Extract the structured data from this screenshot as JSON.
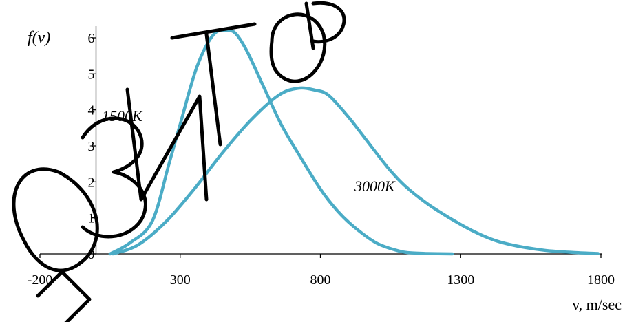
{
  "chart_data": {
    "type": "line",
    "ylabel": "f(v)",
    "xlabel": "v, m/sec",
    "xlim": [
      -200,
      1800
    ],
    "ylim": [
      0,
      6.5
    ],
    "x_ticks": [
      "-200",
      "300",
      "800",
      "1300",
      "1800"
    ],
    "y_ticks": [
      "0",
      "1",
      "2",
      "3",
      "4",
      "5",
      "6"
    ],
    "grid": false,
    "legend": "none",
    "line_color": "#4BACC6",
    "series": [
      {
        "name": "1500K",
        "x": [
          50,
          120,
          200,
          260,
          300,
          360,
          420,
          470,
          500,
          540,
          600,
          660,
          720,
          800,
          860,
          920,
          1000,
          1080,
          1120,
          1180,
          1270
        ],
        "y": [
          0,
          0.3,
          0.9,
          2.5,
          3.6,
          5.2,
          6.1,
          6.2,
          6.1,
          5.6,
          4.6,
          3.6,
          2.8,
          1.8,
          1.2,
          0.75,
          0.3,
          0.08,
          0.03,
          0.01,
          0
        ]
      },
      {
        "name": "3000K",
        "x": [
          60,
          150,
          250,
          350,
          450,
          550,
          650,
          720,
          780,
          830,
          900,
          960,
          1040,
          1100,
          1180,
          1260,
          1340,
          1420,
          1500,
          1600,
          1700,
          1790
        ],
        "y": [
          0,
          0.25,
          0.9,
          1.8,
          2.8,
          3.7,
          4.4,
          4.6,
          4.55,
          4.4,
          3.8,
          3.2,
          2.4,
          1.9,
          1.4,
          1.0,
          0.65,
          0.38,
          0.22,
          0.1,
          0.04,
          0.01
        ]
      }
    ]
  }
}
